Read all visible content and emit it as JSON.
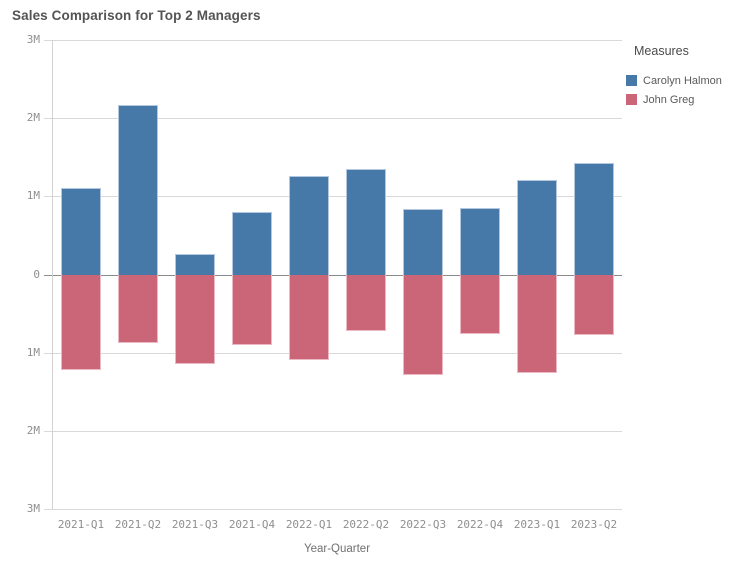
{
  "title": "Sales Comparison for Top 2 Managers",
  "legend": {
    "title": "Measures",
    "items": [
      {
        "label": "Carolyn Halmon",
        "color": "#4678a8"
      },
      {
        "label": "John Greg",
        "color": "#ca6678"
      }
    ]
  },
  "axes": {
    "x_title": "Year-Quarter",
    "y_ticks": [
      {
        "label": "3M",
        "value": 3
      },
      {
        "label": "2M",
        "value": 2
      },
      {
        "label": "1M",
        "value": 1
      },
      {
        "label": "0",
        "value": 0
      },
      {
        "label": "1M",
        "value": -1
      },
      {
        "label": "2M",
        "value": -2
      },
      {
        "label": "3M",
        "value": -3
      }
    ]
  },
  "chart_data": {
    "type": "bar",
    "title": "Sales Comparison for Top 2 Managers",
    "xlabel": "Year-Quarter",
    "ylabel": "",
    "units": "M",
    "ylim": [
      -3,
      3
    ],
    "grid": true,
    "legend_position": "right",
    "orientation": "diverging-vertical",
    "categories": [
      "2021-Q1",
      "2021-Q2",
      "2021-Q3",
      "2021-Q4",
      "2022-Q1",
      "2022-Q2",
      "2022-Q3",
      "2022-Q4",
      "2023-Q1",
      "2023-Q2"
    ],
    "series": [
      {
        "name": "Carolyn Halmon",
        "color": "#4678a8",
        "border_color": "#b3c8de",
        "values": [
          1.11,
          2.18,
          0.27,
          0.81,
          1.27,
          1.35,
          0.84,
          0.86,
          1.22,
          1.43
        ]
      },
      {
        "name": "John Greg",
        "color": "#ca6678",
        "border_color": "#eab9c3",
        "values": [
          -1.21,
          -0.87,
          -1.14,
          -0.89,
          -1.09,
          -0.72,
          -1.28,
          -0.75,
          -1.26,
          -0.77
        ]
      }
    ]
  },
  "colors": {
    "background": "#ffffff",
    "title_text": "#545454",
    "tick_text": "#8f8f8f",
    "axis_title_text": "#707070",
    "gridline": "#d9d9d9",
    "zero_line": "#8c8c8c",
    "axis_line": "#d2d2d2",
    "legend_title_text": "#4c4c4c",
    "legend_label_text": "#5a5a5a"
  }
}
